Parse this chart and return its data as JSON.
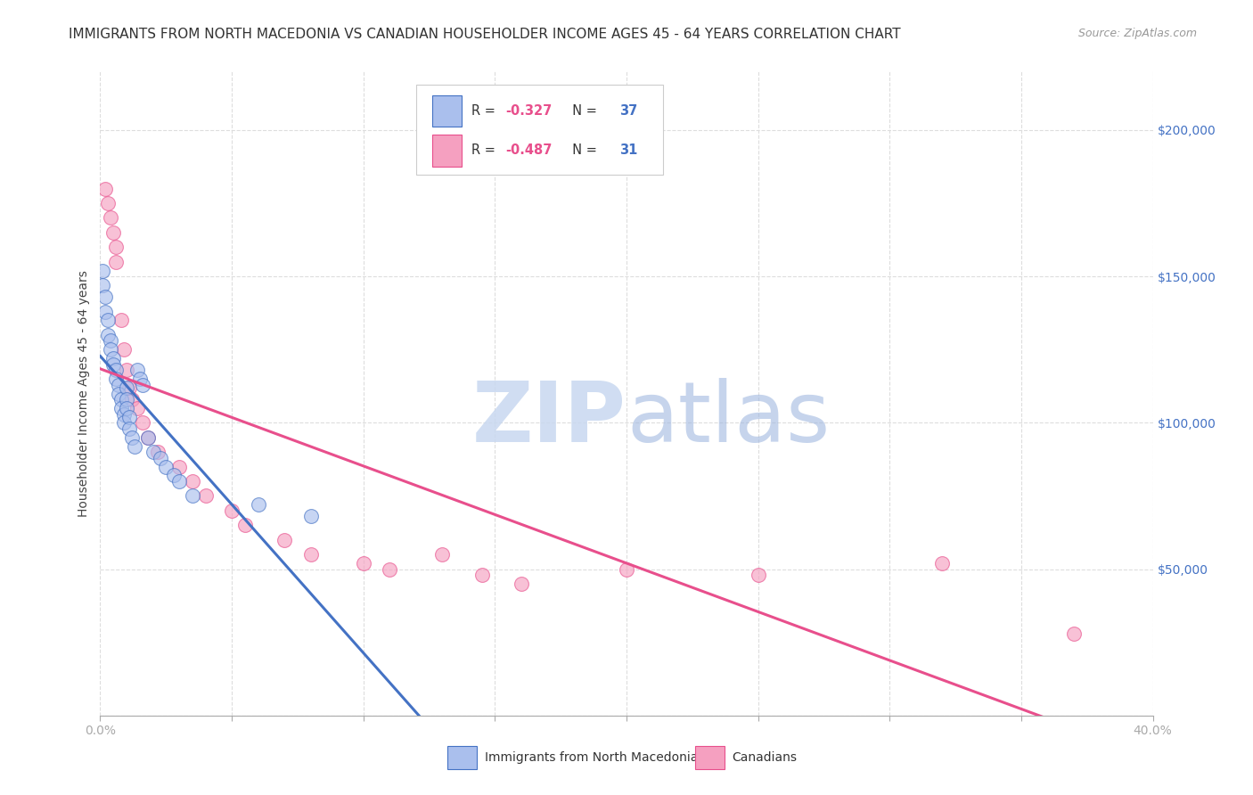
{
  "title": "IMMIGRANTS FROM NORTH MACEDONIA VS CANADIAN HOUSEHOLDER INCOME AGES 45 - 64 YEARS CORRELATION CHART",
  "source": "Source: ZipAtlas.com",
  "ylabel": "Householder Income Ages 45 - 64 years",
  "xlim": [
    0.0,
    0.4
  ],
  "ylim": [
    0,
    220000
  ],
  "xticks": [
    0.0,
    0.05,
    0.1,
    0.15,
    0.2,
    0.25,
    0.3,
    0.35,
    0.4
  ],
  "xticklabels": [
    "0.0%",
    "",
    "",
    "",
    "",
    "",
    "",
    "",
    "40.0%"
  ],
  "yticks_right": [
    0,
    50000,
    100000,
    150000,
    200000
  ],
  "ytick_labels_right": [
    "",
    "$50,000",
    "$100,000",
    "$150,000",
    "$200,000"
  ],
  "blue_scatter_x": [
    0.001,
    0.001,
    0.002,
    0.002,
    0.003,
    0.003,
    0.004,
    0.004,
    0.005,
    0.005,
    0.006,
    0.006,
    0.007,
    0.007,
    0.008,
    0.008,
    0.009,
    0.009,
    0.01,
    0.01,
    0.01,
    0.011,
    0.011,
    0.012,
    0.013,
    0.014,
    0.015,
    0.016,
    0.018,
    0.02,
    0.023,
    0.025,
    0.028,
    0.03,
    0.035,
    0.06,
    0.08
  ],
  "blue_scatter_y": [
    152000,
    147000,
    143000,
    138000,
    135000,
    130000,
    128000,
    125000,
    122000,
    120000,
    118000,
    115000,
    113000,
    110000,
    108000,
    105000,
    103000,
    100000,
    112000,
    108000,
    105000,
    102000,
    98000,
    95000,
    92000,
    118000,
    115000,
    113000,
    95000,
    90000,
    88000,
    85000,
    82000,
    80000,
    75000,
    72000,
    68000
  ],
  "pink_scatter_x": [
    0.002,
    0.003,
    0.004,
    0.005,
    0.006,
    0.006,
    0.008,
    0.009,
    0.01,
    0.011,
    0.012,
    0.014,
    0.016,
    0.018,
    0.022,
    0.03,
    0.035,
    0.04,
    0.05,
    0.055,
    0.07,
    0.08,
    0.1,
    0.11,
    0.13,
    0.145,
    0.16,
    0.2,
    0.25,
    0.32,
    0.37
  ],
  "pink_scatter_y": [
    180000,
    175000,
    170000,
    165000,
    160000,
    155000,
    135000,
    125000,
    118000,
    112000,
    108000,
    105000,
    100000,
    95000,
    90000,
    85000,
    80000,
    75000,
    70000,
    65000,
    60000,
    55000,
    52000,
    50000,
    55000,
    48000,
    45000,
    50000,
    48000,
    52000,
    28000
  ],
  "blue_line_color": "#4472C4",
  "pink_line_color": "#E84F8C",
  "blue_scatter_color": "#AABFED",
  "pink_scatter_color": "#F5A0C0",
  "legend_r_blue": "-0.327",
  "legend_n_blue": "37",
  "legend_r_pink": "-0.487",
  "legend_n_pink": "31",
  "watermark_zip": "ZIP",
  "watermark_atlas": "atlas",
  "background_color": "#FFFFFF",
  "grid_color": "#DDDDDD",
  "title_fontsize": 11,
  "axis_label_fontsize": 10,
  "tick_fontsize": 10,
  "source_fontsize": 9
}
